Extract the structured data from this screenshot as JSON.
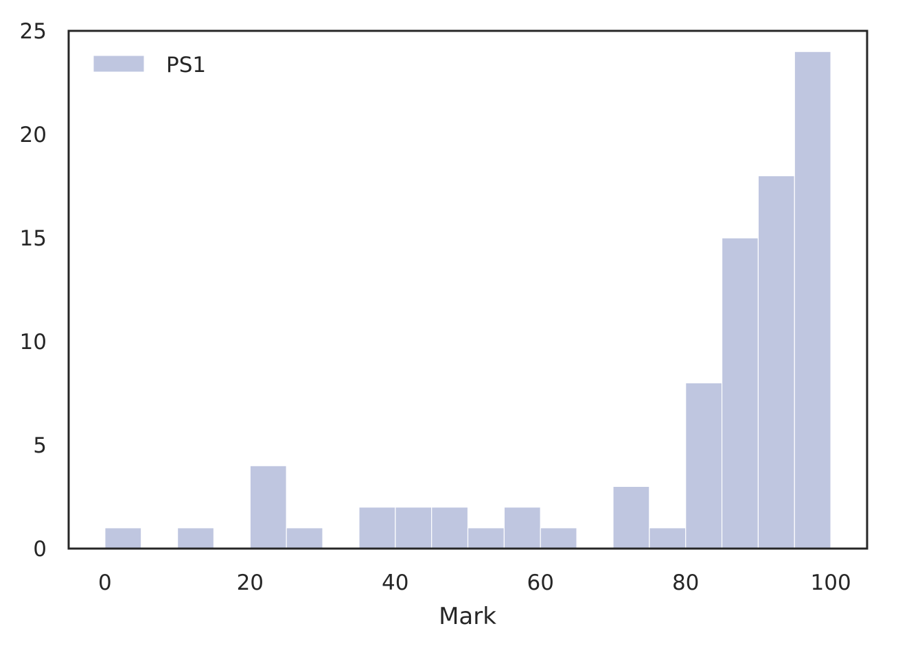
{
  "chart_data": {
    "type": "bar",
    "title": "",
    "xlabel": "Mark",
    "ylabel": "",
    "xlim": [
      -5,
      105
    ],
    "ylim": [
      0,
      25
    ],
    "xticks": [
      0,
      20,
      40,
      60,
      80,
      100
    ],
    "yticks": [
      0,
      5,
      10,
      15,
      20,
      25
    ],
    "grid": false,
    "legend_position": "top-left",
    "series": [
      {
        "name": "PS1",
        "color": "#bfc6e0",
        "bins": [
          {
            "x0": 0,
            "x1": 5,
            "count": 1
          },
          {
            "x0": 5,
            "x1": 10,
            "count": 0
          },
          {
            "x0": 10,
            "x1": 15,
            "count": 1
          },
          {
            "x0": 15,
            "x1": 20,
            "count": 0
          },
          {
            "x0": 20,
            "x1": 25,
            "count": 4
          },
          {
            "x0": 25,
            "x1": 30,
            "count": 1
          },
          {
            "x0": 30,
            "x1": 35,
            "count": 0
          },
          {
            "x0": 35,
            "x1": 40,
            "count": 2
          },
          {
            "x0": 40,
            "x1": 45,
            "count": 2
          },
          {
            "x0": 45,
            "x1": 50,
            "count": 2
          },
          {
            "x0": 50,
            "x1": 55,
            "count": 1
          },
          {
            "x0": 55,
            "x1": 60,
            "count": 2
          },
          {
            "x0": 60,
            "x1": 65,
            "count": 1
          },
          {
            "x0": 65,
            "x1": 70,
            "count": 0
          },
          {
            "x0": 70,
            "x1": 75,
            "count": 3
          },
          {
            "x0": 75,
            "x1": 80,
            "count": 1
          },
          {
            "x0": 80,
            "x1": 85,
            "count": 8
          },
          {
            "x0": 85,
            "x1": 90,
            "count": 15
          },
          {
            "x0": 90,
            "x1": 95,
            "count": 18
          },
          {
            "x0": 95,
            "x1": 100,
            "count": 24
          }
        ]
      }
    ]
  }
}
